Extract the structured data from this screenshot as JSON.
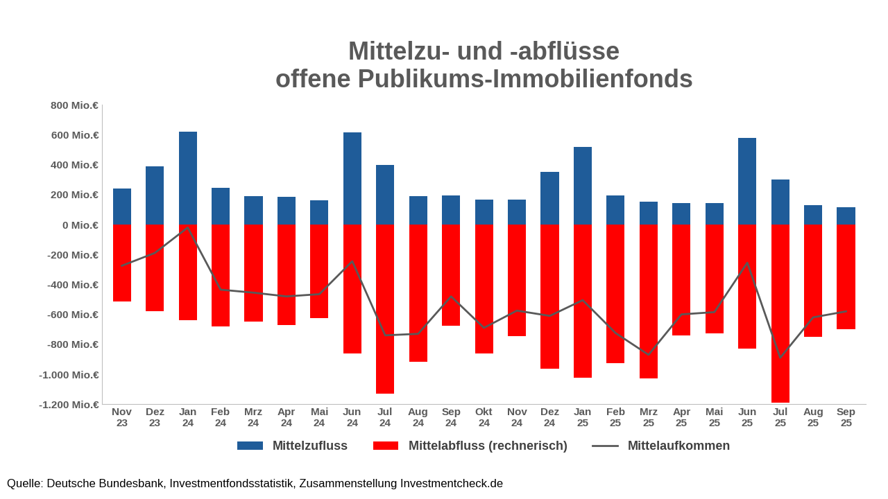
{
  "chart_data": {
    "type": "bar",
    "title": "Mittelzu- und -abflüsse\noffene Publikums-Immobilienfonds",
    "source": "Quelle: Deutsche Bundesbank, Investmentfondsstatistik, Zusammenstellung Investmentcheck.de",
    "categories": [
      "Nov\n23",
      "Dez\n23",
      "Jan\n24",
      "Feb\n24",
      "Mrz\n24",
      "Apr\n24",
      "Mai\n24",
      "Jun\n24",
      "Jul\n24",
      "Aug\n24",
      "Sep\n24",
      "Okt\n24",
      "Nov\n24",
      "Dez\n24",
      "Jan\n25",
      "Feb\n25",
      "Mrz\n25",
      "Apr\n25",
      "Mai\n25",
      "Jun\n25",
      "Jul\n25",
      "Aug\n25",
      "Sep\n25"
    ],
    "series": [
      {
        "name": "Mittelzufluss",
        "type": "bar",
        "color": "#1f5c99",
        "values": [
          240,
          390,
          620,
          245,
          190,
          185,
          160,
          615,
          400,
          190,
          195,
          165,
          165,
          350,
          520,
          195,
          155,
          145,
          145,
          580,
          300,
          130,
          115
        ]
      },
      {
        "name": "Mittelabfluss (rechnerisch)",
        "type": "bar",
        "color": "#ff0000",
        "values": [
          -515,
          -580,
          -640,
          -680,
          -650,
          -670,
          -625,
          -860,
          -1130,
          -915,
          -675,
          -860,
          -745,
          -965,
          -1025,
          -925,
          -1030,
          -740,
          -725,
          -830,
          -1190,
          -750,
          -700
        ]
      },
      {
        "name": "Mittelaufkommen",
        "type": "line",
        "color": "#595959",
        "line_style": "solid",
        "values": [
          -275,
          -190,
          -20,
          -435,
          -455,
          -480,
          -465,
          -245,
          -740,
          -730,
          -480,
          -690,
          -575,
          -610,
          -505,
          -725,
          -870,
          -600,
          -585,
          -255,
          -890,
          -620,
          -580
        ]
      }
    ],
    "ylim": [
      -1200,
      800
    ],
    "yticks": [
      {
        "value": -1200,
        "label": "-1.200 Mio.€"
      },
      {
        "value": -1000,
        "label": "-1.000 Mio.€"
      },
      {
        "value": -800,
        "label": "-800 Mio.€"
      },
      {
        "value": -600,
        "label": "-600 Mio.€"
      },
      {
        "value": -400,
        "label": "-400 Mio.€"
      },
      {
        "value": -200,
        "label": "-200 Mio.€"
      },
      {
        "value": 0,
        "label": "0 Mio.€"
      },
      {
        "value": 200,
        "label": "200 Mio.€"
      },
      {
        "value": 400,
        "label": "400 Mio.€"
      },
      {
        "value": 600,
        "label": "600 Mio.€"
      },
      {
        "value": 800,
        "label": "800 Mio.€"
      }
    ],
    "grid": false,
    "legend": "lower center",
    "data_labels": false
  }
}
